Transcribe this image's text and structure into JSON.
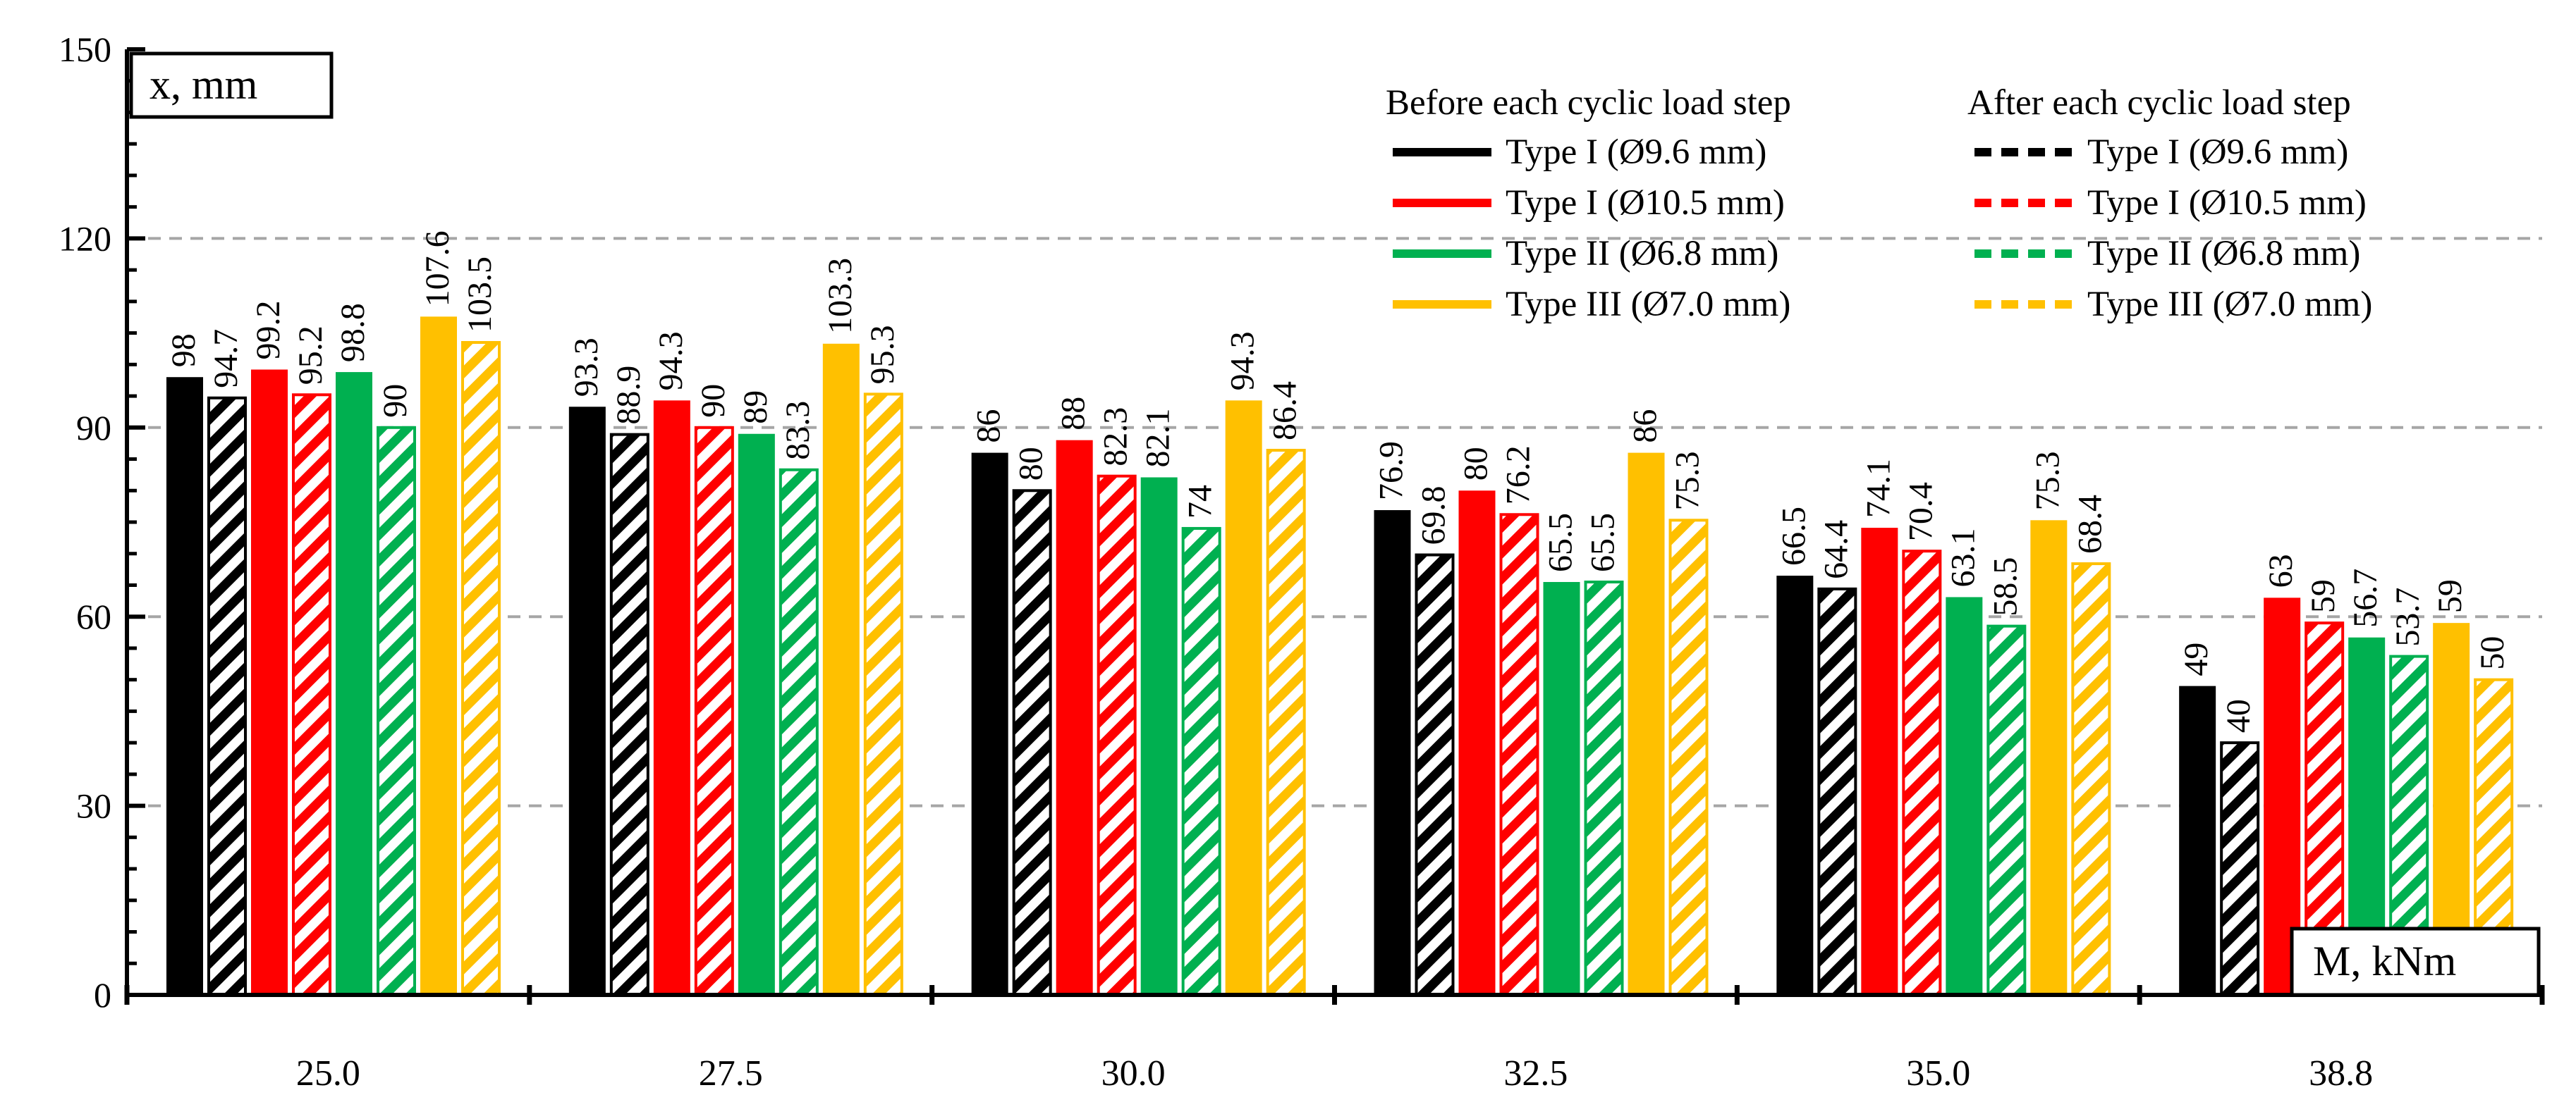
{
  "chart_data": {
    "type": "bar",
    "title": "",
    "ylabel": "x, mm",
    "xlabel": "M, kNm",
    "ylim": [
      0,
      150
    ],
    "yticks": [
      "0",
      "30",
      "60",
      "90",
      "120",
      "150"
    ],
    "grid": true,
    "categories": [
      "25.0",
      "27.5",
      "30.0",
      "32.5",
      "35.0",
      "38.8"
    ],
    "legend_headers": {
      "before": "Before each cyclic load step",
      "after": "After each cyclic load step"
    },
    "series": [
      {
        "name": "Type I (Ø9.6 mm)",
        "phase": "before",
        "color": "#000000",
        "values": [
          98,
          93.3,
          86,
          76.9,
          66.5,
          49
        ],
        "labels": [
          "98",
          "93.3",
          "86",
          "76.9",
          "66.5",
          "49"
        ]
      },
      {
        "name": "Type I (Ø9.6 mm)",
        "phase": "after",
        "color": "#000000",
        "values": [
          94.7,
          88.9,
          80,
          69.8,
          64.4,
          40
        ],
        "labels": [
          "94.7",
          "88.9",
          "80",
          "69.8",
          "64.4",
          "40"
        ]
      },
      {
        "name": "Type I (Ø10.5 mm)",
        "phase": "before",
        "color": "#ff0000",
        "values": [
          99.2,
          94.3,
          88,
          80,
          74.1,
          63
        ],
        "labels": [
          "99.2",
          "94.3",
          "88",
          "80",
          "74.1",
          "63"
        ]
      },
      {
        "name": "Type I (Ø10.5 mm)",
        "phase": "after",
        "color": "#ff0000",
        "values": [
          95.2,
          90,
          82.3,
          76.2,
          70.4,
          59
        ],
        "labels": [
          "95.2",
          "90",
          "82.3",
          "76.2",
          "70.4",
          "59"
        ]
      },
      {
        "name": "Type II (Ø6.8 mm)",
        "phase": "before",
        "color": "#00b050",
        "values": [
          98.8,
          89,
          82.1,
          65.5,
          63.1,
          56.7
        ],
        "labels": [
          "98.8",
          "89",
          "82.1",
          "65.5",
          "63.1",
          "56.7"
        ]
      },
      {
        "name": "Type II (Ø6.8 mm)",
        "phase": "after",
        "color": "#00b050",
        "values": [
          90,
          83.3,
          74,
          65.5,
          58.5,
          53.7
        ],
        "labels": [
          "90",
          "83.3",
          "74",
          "65.5",
          "58.5",
          "53.7"
        ]
      },
      {
        "name": "Type III (Ø7.0 mm)",
        "phase": "before",
        "color": "#ffc000",
        "values": [
          107.6,
          103.3,
          94.3,
          86,
          75.3,
          59
        ],
        "labels": [
          "107.6",
          "103.3",
          "94.3",
          "86",
          "75.3",
          "59"
        ]
      },
      {
        "name": "Type III (Ø7.0 mm)",
        "phase": "after",
        "color": "#ffc000",
        "values": [
          103.5,
          95.3,
          86.4,
          75.3,
          68.4,
          50
        ],
        "labels": [
          "103.5",
          "95.3",
          "86.4",
          "75.3",
          "68.4",
          "50"
        ]
      }
    ]
  }
}
